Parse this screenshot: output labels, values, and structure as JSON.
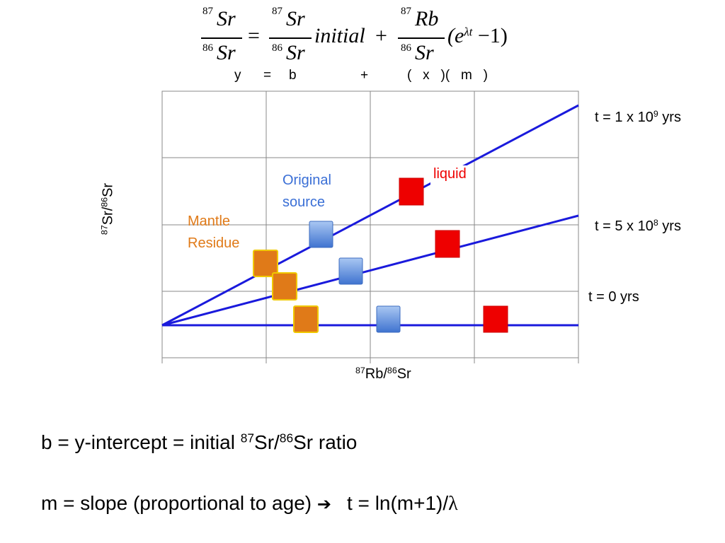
{
  "equation": {
    "lhs_num_sup": "87",
    "lhs_num": "Sr",
    "lhs_den_sup": "86",
    "lhs_den": "Sr",
    "equals": "=",
    "mid_num_sup": "87",
    "mid_num": "Sr",
    "mid_den_sup": "86",
    "mid_den": "Sr",
    "initial": "initial",
    "plus": "+",
    "rhs_num_sup": "87",
    "rhs_num": "Rb",
    "rhs_den_sup": "86",
    "rhs_den": "Sr",
    "exp_open": "(e",
    "exp_sup": "λt",
    "exp_close": " −1)"
  },
  "linear_form": {
    "y": "y",
    "eq": "=",
    "b": "b",
    "plus": "+",
    "x": "(   x   )(   m   )"
  },
  "axes": {
    "ylabel_sup1": "87",
    "ylabel_mid": "Sr/",
    "ylabel_sup2": "86",
    "ylabel_end": "Sr",
    "xlabel_sup1": "87",
    "xlabel_mid": "Rb/",
    "xlabel_sup2": "86",
    "xlabel_end": "Sr"
  },
  "isochron_labels": {
    "t1_pre": "t = 1 x 10",
    "t1_sup": "9",
    "t1_post": " yrs",
    "t2_pre": "t = 5 x 10",
    "t2_sup": "8",
    "t2_post": " yrs",
    "t3": "t = 0 yrs"
  },
  "annotations": {
    "original_line1": "Original",
    "original_line2": "source",
    "mantle_line1": "Mantle",
    "mantle_line2": "Residue",
    "liquid": "liquid"
  },
  "colors": {
    "line": "#1a1adc",
    "original": "#4a7fd8",
    "mantle": "#e07a18",
    "liquid": "#ee0000"
  },
  "notes": {
    "b_pre": "b = y-intercept = initial ",
    "b_sup1": "87",
    "b_mid": "Sr/",
    "b_sup2": "86",
    "b_post": "Sr ratio",
    "m_pre": "m = slope (proportional to age) ",
    "arrow": "➔",
    "m_post": "t = ln(m+1)/",
    "lambda": "λ"
  }
}
